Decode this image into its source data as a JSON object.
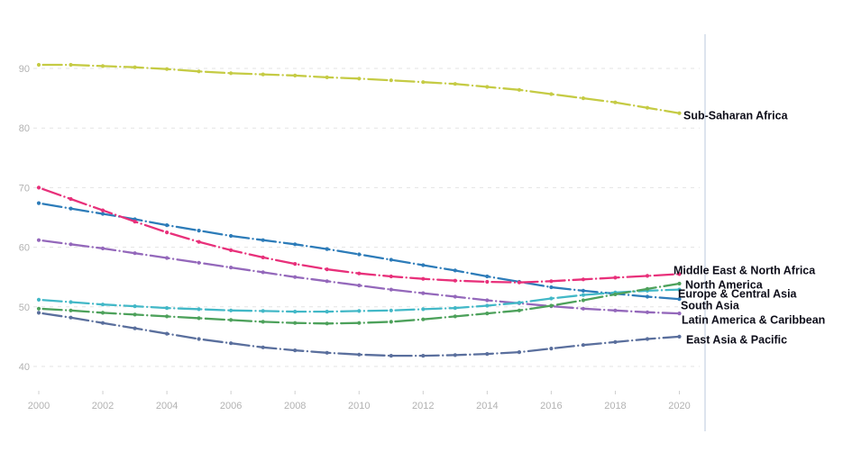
{
  "chart_data": {
    "type": "line",
    "title": "",
    "xlabel": "",
    "ylabel": "",
    "x": [
      2000,
      2001,
      2002,
      2003,
      2004,
      2005,
      2006,
      2007,
      2008,
      2009,
      2010,
      2011,
      2012,
      2013,
      2014,
      2015,
      2016,
      2017,
      2018,
      2019,
      2020
    ],
    "x_tick_labels": [
      "2000",
      "2002",
      "2004",
      "2006",
      "2008",
      "2010",
      "2012",
      "2014",
      "2016",
      "2018",
      "2020"
    ],
    "x_tick_years": [
      2000,
      2002,
      2004,
      2006,
      2008,
      2010,
      2012,
      2014,
      2016,
      2018,
      2020
    ],
    "y_ticks": [
      90,
      80,
      70,
      60,
      50,
      40
    ],
    "ylim": [
      38,
      92
    ],
    "grid": "horizontal-dashed",
    "legend_position": "end-of-line-labels",
    "line_style": "dash-dot-with-year-markers",
    "series": [
      {
        "name": "Sub-Saharan Africa",
        "color": "#c5cb44",
        "values": [
          90.6,
          90.6,
          90.4,
          90.2,
          89.9,
          89.5,
          89.2,
          89.0,
          88.8,
          88.5,
          88.3,
          88.0,
          87.7,
          87.4,
          86.9,
          86.4,
          85.7,
          85.0,
          84.3,
          83.4,
          82.5
        ]
      },
      {
        "name": "Middle East & North Africa",
        "color": "#e8307a",
        "values": [
          70.0,
          68.1,
          66.2,
          64.3,
          62.5,
          60.9,
          59.5,
          58.3,
          57.2,
          56.3,
          55.6,
          55.1,
          54.7,
          54.4,
          54.2,
          54.1,
          54.3,
          54.6,
          54.9,
          55.2,
          55.5
        ]
      },
      {
        "name": "North America",
        "color": "#4da15b",
        "values": [
          49.7,
          49.4,
          49.0,
          48.7,
          48.4,
          48.1,
          47.8,
          47.5,
          47.3,
          47.2,
          47.3,
          47.5,
          47.9,
          48.4,
          48.9,
          49.4,
          50.2,
          51.1,
          52.1,
          53.0,
          53.9
        ]
      },
      {
        "name": "Europe & Central Asia",
        "color": "#42b8c7",
        "values": [
          51.2,
          50.8,
          50.4,
          50.1,
          49.8,
          49.6,
          49.4,
          49.3,
          49.2,
          49.2,
          49.3,
          49.4,
          49.6,
          49.8,
          50.2,
          50.7,
          51.4,
          52.0,
          52.4,
          52.7,
          52.9
        ]
      },
      {
        "name": "South Asia",
        "color": "#2d7cb9",
        "values": [
          67.4,
          66.5,
          65.6,
          64.7,
          63.7,
          62.8,
          61.9,
          61.2,
          60.5,
          59.7,
          58.8,
          57.9,
          57.0,
          56.1,
          55.1,
          54.2,
          53.3,
          52.7,
          52.2,
          51.7,
          51.3
        ]
      },
      {
        "name": "Latin America & Caribbean",
        "color": "#9468bb",
        "values": [
          61.2,
          60.5,
          59.8,
          59.0,
          58.2,
          57.4,
          56.6,
          55.8,
          55.0,
          54.3,
          53.6,
          52.9,
          52.3,
          51.7,
          51.1,
          50.6,
          50.1,
          49.7,
          49.4,
          49.1,
          48.9
        ]
      },
      {
        "name": "East Asia & Pacific",
        "color": "#5a6f9d",
        "values": [
          49.0,
          48.2,
          47.3,
          46.4,
          45.5,
          44.6,
          43.9,
          43.2,
          42.7,
          42.3,
          42.0,
          41.8,
          41.8,
          41.9,
          42.1,
          42.4,
          43.0,
          43.6,
          44.1,
          44.6,
          45.0
        ]
      }
    ]
  },
  "palette": {
    "background": "#ffffff",
    "gridline": "#e3e3e3",
    "axis_text": "#b2b2b2",
    "tick_mark": "#cfcfcf",
    "right_border": "#dde4ee",
    "series_label_text": "#0e0e1a"
  }
}
